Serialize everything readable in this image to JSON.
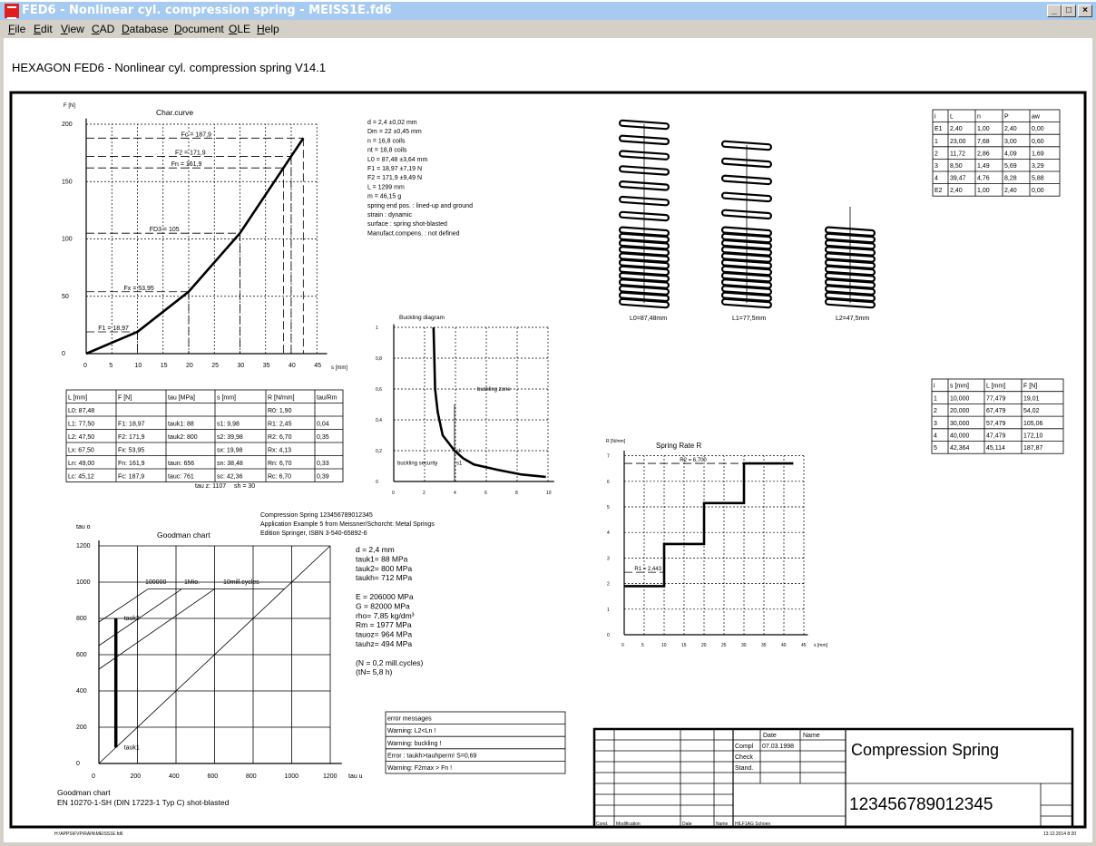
{
  "window": {
    "title": "FED6 - Nonlinear cyl. compression spring  -  MEISS1E.fd6",
    "minimize": "_",
    "maximize": "□",
    "close": "×"
  },
  "menu": {
    "items": [
      "File",
      "Edit",
      "View",
      "CAD",
      "Database",
      "Document",
      "OLE",
      "Help"
    ]
  },
  "header": "HEXAGON   FED6 - Nonlinear cyl. compression spring  V14.1",
  "spring_data": [
    "d = 2,4 ±0,02 mm",
    "Dm = 22 ±0,45 mm",
    "n = 16,8 coils",
    "nt = 18,8 coils",
    "L0 = 87,48 ±3,64 mm",
    "F1 = 18,97 ±7,19 N",
    "F2 = 171,9 ±9,49 N",
    "L = 1299 mm",
    "m = 46,15 g",
    "spring end pos. : lined-up and ground",
    "strain : dynamic",
    "surface : spring shot-blasted",
    "Manufact.compens. : not defined"
  ],
  "param_table": {
    "headers": [
      "L [mm]",
      "F [N]",
      "tau [MPa]",
      "s [mm]",
      "R [N/mm]",
      "tau/Rm"
    ],
    "rows": [
      [
        "L0: 87,48",
        "",
        "",
        "",
        "R0:  1,90",
        ""
      ],
      [
        "L1: 77,50",
        "F1: 18,97",
        "tauk1: 88",
        "s1:  9,98",
        "R1:  2,45",
        "0,04"
      ],
      [
        "L2: 47,50",
        "F2: 171,9",
        "tauk2: 800",
        "s2:  39,98",
        "R2:  6,70",
        "0,35"
      ],
      [
        "Lx: 67,50",
        "Fx: 53,95",
        "",
        "sx:  19,98",
        "Rx:  4,13",
        ""
      ],
      [
        "Ln: 49,00",
        "Fn: 161,9",
        "taun: 656",
        "sn:  38,48",
        "Rn:  6,70",
        "0,33"
      ],
      [
        "Lc: 45,12",
        "Fc: 187,9",
        "tauc: 761",
        "sc:  42,36",
        "Rc:  6,70",
        "0,39"
      ]
    ],
    "footer": [
      "tau z: 1107",
      "sh = 30"
    ]
  },
  "coil_table": {
    "headers": [
      "i",
      "L",
      "n",
      "P",
      "aw"
    ],
    "rows": [
      [
        "E1",
        "2,40",
        "1,00",
        "2,40",
        "0,00"
      ],
      [
        "1",
        "23,00",
        "7,68",
        "3,00",
        "0,60"
      ],
      [
        "2",
        "11,72",
        "2,86",
        "4,09",
        "1,69"
      ],
      [
        "3",
        "8,50",
        "1,49",
        "5,69",
        "3,29"
      ],
      [
        "4",
        "39,47",
        "4,76",
        "8,28",
        "5,88"
      ],
      [
        "E2",
        "2,40",
        "1,00",
        "2,40",
        "0,00"
      ]
    ]
  },
  "travel_table": {
    "headers": [
      "i",
      "s [mm]",
      "L [mm]",
      "F [N]"
    ],
    "rows": [
      [
        "1",
        "10,000",
        "77,479",
        "19,01"
      ],
      [
        "2",
        "20,000",
        "67,479",
        "54,02"
      ],
      [
        "3",
        "30,000",
        "57,479",
        "105,06"
      ],
      [
        "4",
        "40,000",
        "47,479",
        "172,10"
      ],
      [
        "5",
        "42,364",
        "45,114",
        "187,87"
      ]
    ]
  },
  "springs": {
    "labels": [
      "L0=87,48mm",
      "L1=77,5mm",
      "L2=47,5mm"
    ]
  },
  "reference": [
    "Compression Spring  123456789012345",
    "Application Example 5 from Meissner/Schorcht: Metal Springs",
    "Edition Springer, ISBN 3-540-65892-6"
  ],
  "material": [
    "d  = 2,4 mm",
    "tauk1=    88 MPa",
    "tauk2=  800 MPa",
    "taukh=  712 MPa",
    "",
    "E = 206000 MPa",
    "G =  82000 MPa",
    "rho=  7,85 kg/dm³",
    "Rm =  1977 MPa",
    "tauoz=  964 MPa",
    "tauhz=  494 MPa",
    "",
    "(N = 0,2 mill.cycles)",
    "(tN= 5,8 h)"
  ],
  "errors": {
    "title": "error messages",
    "items": [
      "Warning: L2<Ln !",
      "Warning: buckling !",
      "Error : taukh>tauhperm! S=0,69",
      "Warning: F2max > Fn !"
    ]
  },
  "goodman_caption": [
    "Goodman chart",
    "EN 10270-1-SH (DIN 17223-1 Typ C) shot-blasted"
  ],
  "title_block": {
    "date_header": "Date",
    "name_header": "Name",
    "row_labels": [
      "Compl",
      "Check",
      "Stand."
    ],
    "compl_date": "07.03.1998",
    "title": "Compression Spring",
    "number": "123456789012345",
    "footer_labels": [
      "Cond.",
      "Modification",
      "Date",
      "Name",
      "HILF1AG  Schoen"
    ]
  },
  "footer": {
    "path": "H:\\APPS\\FVP\\RAIN\\MEISS1E.fd6",
    "datetime": "13.12.2014 8:20"
  },
  "chart_data": [
    {
      "type": "line",
      "title": "Char.curve",
      "xlabel": "s [mm]",
      "ylabel": "F [N]",
      "xlim": [
        0,
        45
      ],
      "ylim": [
        0,
        200
      ],
      "grid": true,
      "xticks": [
        "0",
        "5",
        "10",
        "15",
        "20",
        "25",
        "30",
        "35",
        "40",
        "45"
      ],
      "yticks": [
        "0",
        "50",
        "100",
        "150",
        "200"
      ],
      "s": [
        0,
        10,
        20,
        30,
        40,
        42.364
      ],
      "F": [
        0,
        19.01,
        54.02,
        105.06,
        172.1,
        187.87
      ],
      "refs": [
        {
          "label": "Fc = 187,9",
          "F": 187.9,
          "s": 42.36
        },
        {
          "label": "F2 = 171,9",
          "F": 171.9,
          "s": 39.98
        },
        {
          "label": "Fn = 161,9",
          "F": 161.9,
          "s": 38.48
        },
        {
          "label": "FD3 = 105",
          "F": 105,
          "s": 30
        },
        {
          "label": "Fx = 53,95",
          "F": 53.95,
          "s": 20
        },
        {
          "label": "F1 = 18,97",
          "F": 18.97,
          "s": 10
        }
      ]
    },
    {
      "type": "line",
      "title": "Buckling diagram",
      "xlim": [
        0,
        10
      ],
      "ylim": [
        0,
        1
      ],
      "grid": true,
      "xticks": [
        "0",
        "2",
        "4",
        "6",
        "8",
        "10"
      ],
      "yticks": [
        "0",
        "0,2",
        "0,4",
        "0,6",
        "0,8",
        "1"
      ],
      "x": [
        2.58,
        2.68,
        2.85,
        3.17,
        3.94,
        4.5,
        5.2,
        6.76,
        8.3,
        9.86
      ],
      "y": [
        1.0,
        0.6,
        0.45,
        0.3,
        0.2,
        0.15,
        0.11,
        0.075,
        0.045,
        0.03
      ],
      "marker_x": 3.94,
      "labels": {
        "zone": "buckling zone",
        "security": "buckling security",
        "sk": "sk",
        "s1": "s1"
      }
    },
    {
      "type": "line",
      "title": "Spring Rate R",
      "xlabel": "s [mm]",
      "ylabel": "R [N/mm]",
      "xlim": [
        0,
        45
      ],
      "ylim": [
        0,
        7
      ],
      "grid": true,
      "xticks": [
        "0",
        "5",
        "10",
        "15",
        "20",
        "25",
        "30",
        "35",
        "40",
        "45"
      ],
      "yticks": [
        "0",
        "1",
        "2",
        "3",
        "4",
        "5",
        "6",
        "7"
      ],
      "steps": [
        {
          "from": 0,
          "to": 10,
          "R": 1.9
        },
        {
          "from": 10,
          "to": 20,
          "R": 3.55
        },
        {
          "from": 20,
          "to": 30,
          "R": 5.15
        },
        {
          "from": 30,
          "to": 42.36,
          "R": 6.7
        }
      ],
      "refs": [
        {
          "label": "R1 = 2,443",
          "R": 2.443,
          "to": 10
        },
        {
          "label": "R2 = 6,700",
          "R": 6.7,
          "to": 42.36
        }
      ]
    },
    {
      "type": "line",
      "title": "Goodman chart",
      "xlabel": "tau u",
      "ylabel": "tau o",
      "xlim": [
        0,
        1200
      ],
      "ylim": [
        0,
        1200
      ],
      "grid": true,
      "xticks": [
        "0",
        "200",
        "400",
        "600",
        "800",
        "1000",
        "1200"
      ],
      "yticks": [
        "0",
        "200",
        "400",
        "600",
        "800",
        "1000",
        "1200"
      ],
      "lines": [
        {
          "label": "100000",
          "x": [
            0,
            255
          ],
          "y": [
            780,
            962
          ]
        },
        {
          "label": "1Mio.",
          "x": [
            0,
            430
          ],
          "y": [
            650,
            962
          ]
        },
        {
          "label": "10mill.cycles",
          "x": [
            0,
            600
          ],
          "y": [
            520,
            962
          ]
        }
      ],
      "limit": 962,
      "stress_range": {
        "tau_u": 88,
        "tauk1": 88,
        "tauk2": 800,
        "label_low": "tauk1",
        "label_high": "tauk2"
      }
    }
  ]
}
